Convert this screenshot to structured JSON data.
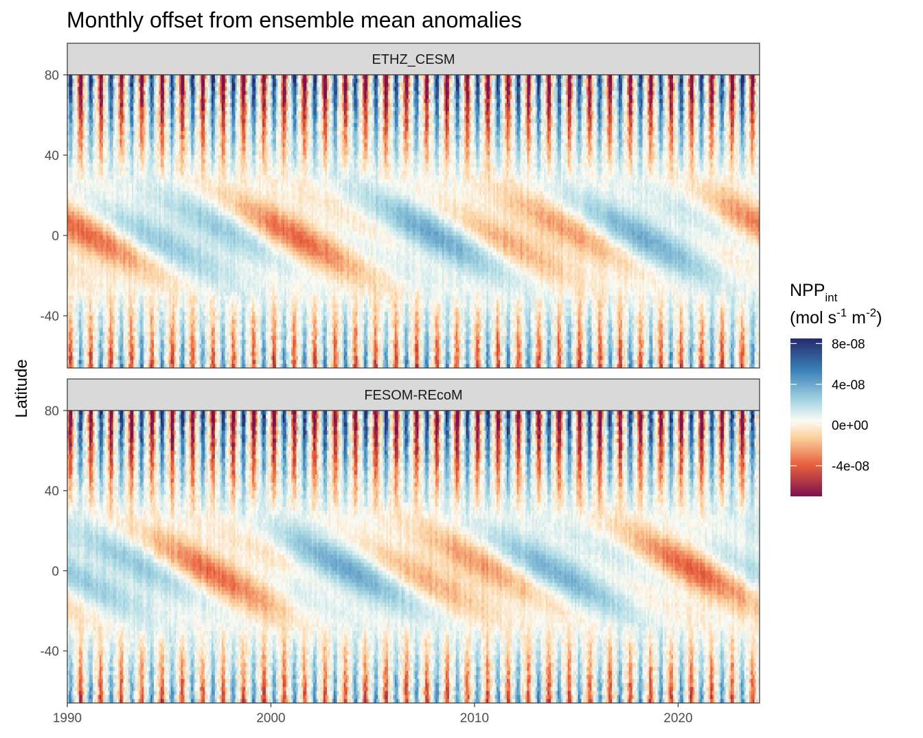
{
  "chart_data": {
    "type": "heatmap",
    "title": "Monthly offset from ensemble mean anomalies",
    "ylabel": "Latitude",
    "xlabel": "",
    "x_range": [
      1990,
      2024
    ],
    "y_range": [
      -66,
      80
    ],
    "x_ticks": [
      "1990",
      "2000",
      "2010",
      "2020"
    ],
    "y_ticks": [
      "80",
      "40",
      "0",
      "-40"
    ],
    "panels": [
      {
        "name": "ETHZ_CESM"
      },
      {
        "name": "FESOM-REcoM"
      }
    ],
    "legend": {
      "title_main": "NPP",
      "title_sub": "int",
      "unit_line_prefix": "(mol s",
      "unit_exp1": "-1",
      "unit_mid": " m",
      "unit_exp2": "-2",
      "unit_suffix": ")",
      "labels": [
        "8e-08",
        "4e-08",
        "0e+00",
        "-4e-08"
      ],
      "breaks": [
        8e-08,
        4e-08,
        0,
        -4e-08
      ],
      "limits": [
        -7e-08,
        8.5e-08
      ]
    },
    "colors": {
      "high": "#262a6b",
      "mid_high": "#3a7fb8",
      "light_blue": "#a9d8e4",
      "zero": "#fbfbf4",
      "light_orange": "#fbcf9c",
      "mid_low": "#e8603c",
      "low": "#7d124e"
    }
  }
}
